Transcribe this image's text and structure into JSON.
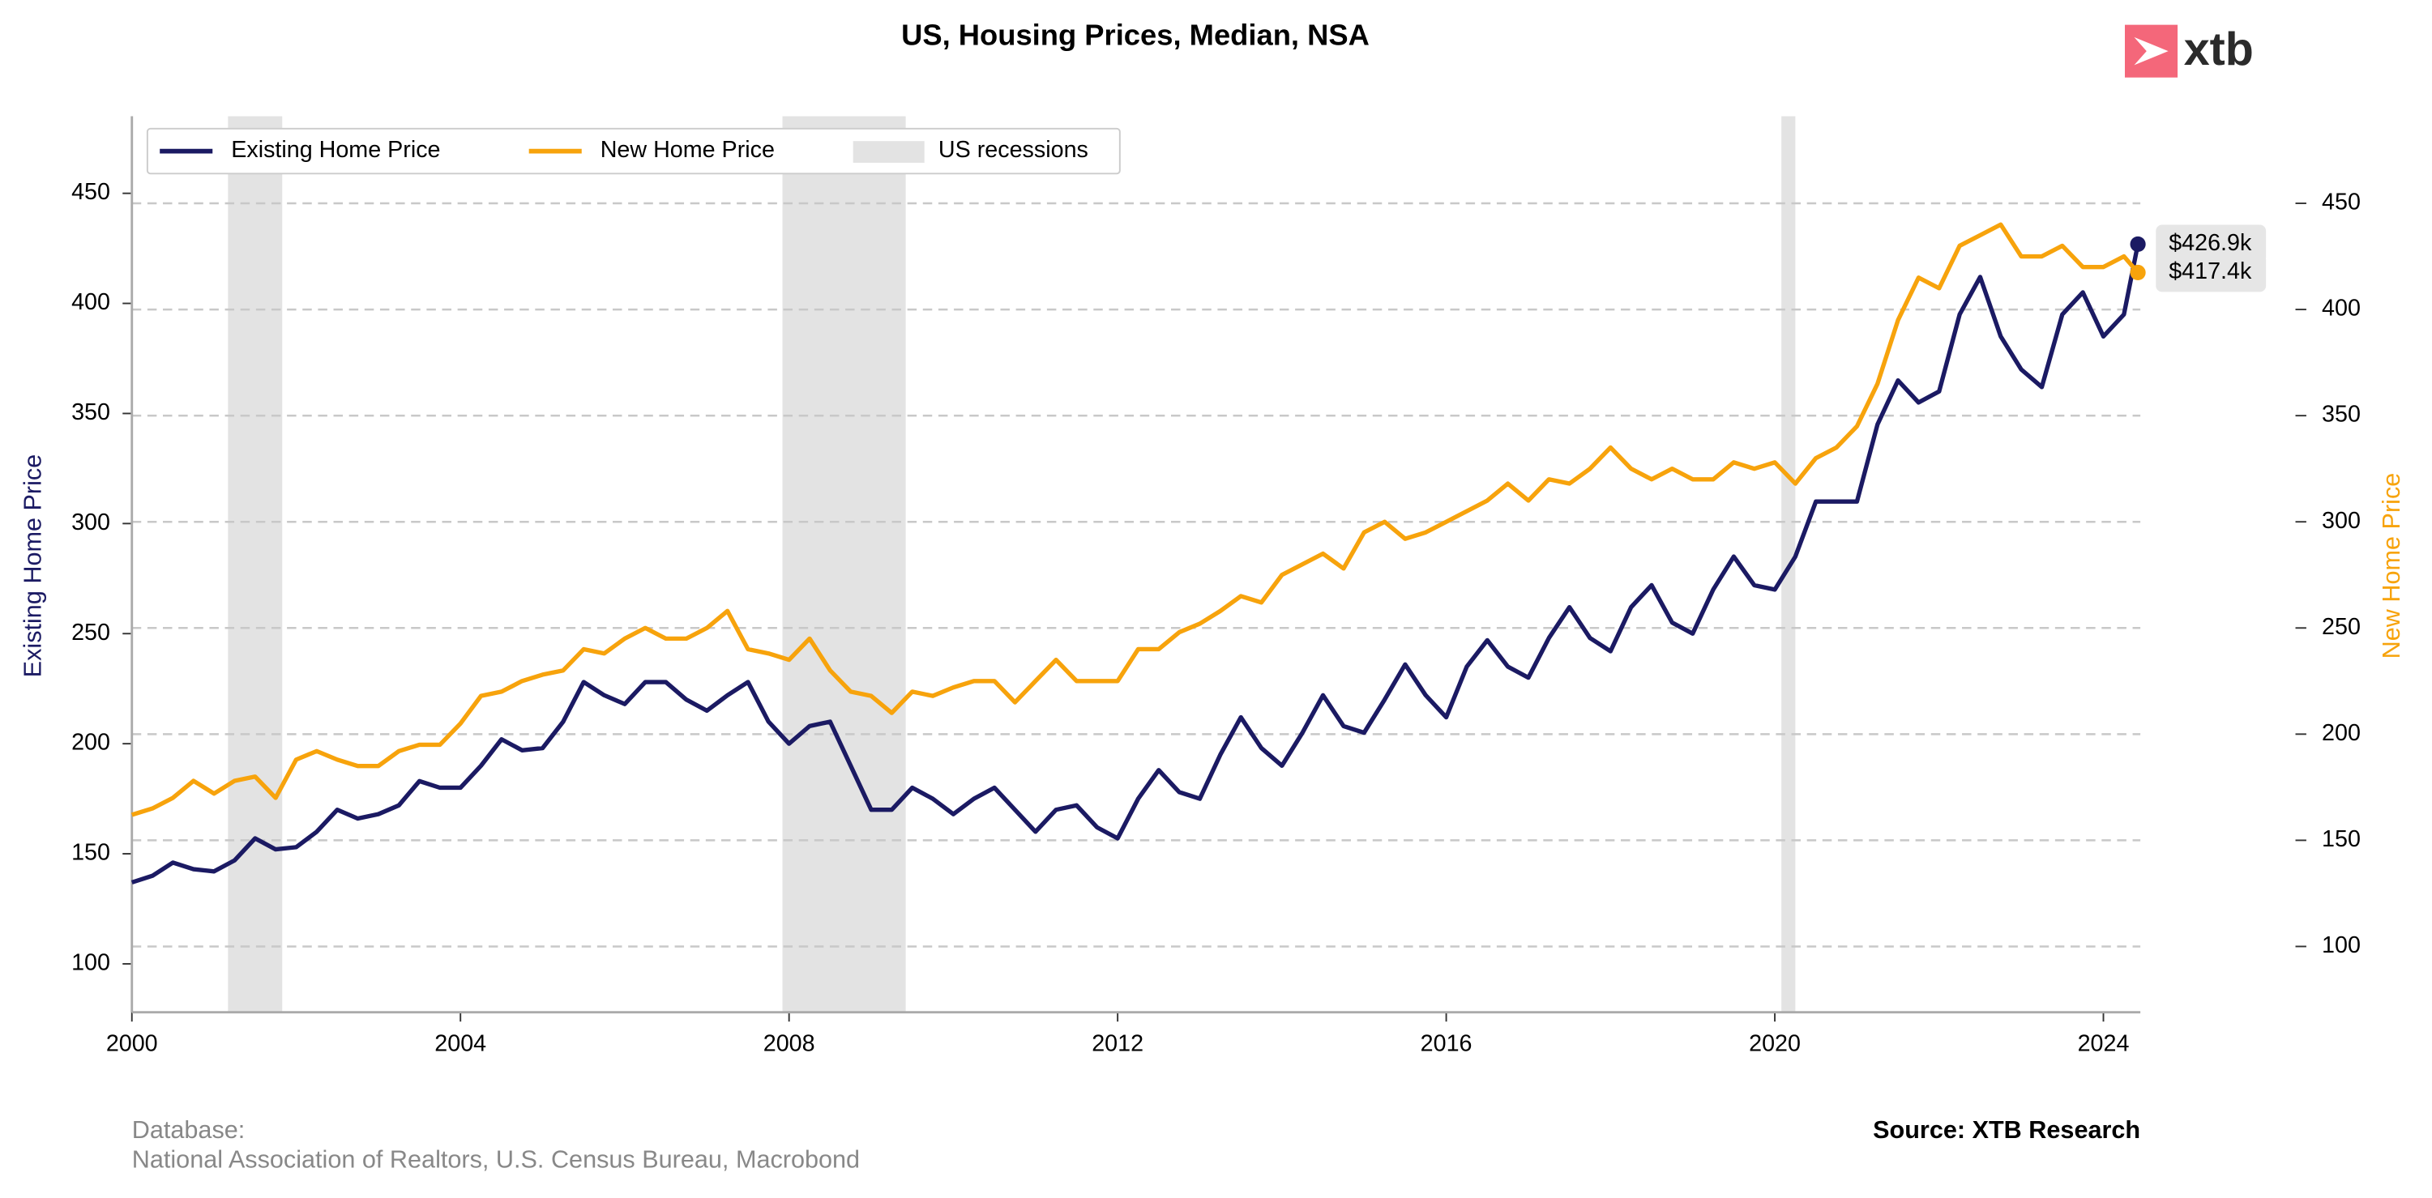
{
  "chart_data": {
    "type": "line",
    "title": "US, Housing Prices, Median, NSA",
    "logo": "xtb",
    "ylabel": "Existing Home Price",
    "y2label": "New Home Price",
    "source": "Source: XTB Research",
    "database": [
      "Database:",
      "National Association of Realtors, U.S. Census Bureau, Macrobond"
    ],
    "xlim": [
      2000,
      2024.45
    ],
    "xticks": [
      2000,
      2004,
      2008,
      2012,
      2016,
      2020,
      2024
    ],
    "ylim": [
      78,
      485
    ],
    "yticks": [
      100,
      150,
      200,
      250,
      300,
      350,
      400,
      450
    ],
    "y2lim": [
      69,
      491
    ],
    "y2ticks": [
      100,
      150,
      200,
      250,
      300,
      350,
      400,
      450
    ],
    "grid": true,
    "legend": "upper left",
    "recessions": {
      "name": "US recessions",
      "color": "#e3e3e3",
      "spans": [
        [
          2001.17,
          2001.83
        ],
        [
          2007.92,
          2009.42
        ],
        [
          2020.08,
          2020.25
        ]
      ]
    },
    "x": [
      2000,
      2000.25,
      2000.5,
      2000.75,
      2001,
      2001.25,
      2001.5,
      2001.75,
      2002,
      2002.25,
      2002.5,
      2002.75,
      2003,
      2003.25,
      2003.5,
      2003.75,
      2004,
      2004.25,
      2004.5,
      2004.75,
      2005,
      2005.25,
      2005.5,
      2005.75,
      2006,
      2006.25,
      2006.5,
      2006.75,
      2007,
      2007.25,
      2007.5,
      2007.75,
      2008,
      2008.25,
      2008.5,
      2008.75,
      2009,
      2009.25,
      2009.5,
      2009.75,
      2010,
      2010.25,
      2010.5,
      2010.75,
      2011,
      2011.25,
      2011.5,
      2011.75,
      2012,
      2012.25,
      2012.5,
      2012.75,
      2013,
      2013.25,
      2013.5,
      2013.75,
      2014,
      2014.25,
      2014.5,
      2014.75,
      2015,
      2015.25,
      2015.5,
      2015.75,
      2016,
      2016.25,
      2016.5,
      2016.75,
      2017,
      2017.25,
      2017.5,
      2017.75,
      2018,
      2018.25,
      2018.5,
      2018.75,
      2019,
      2019.25,
      2019.5,
      2019.75,
      2020,
      2020.25,
      2020.5,
      2020.75,
      2021,
      2021.25,
      2021.5,
      2021.75,
      2022,
      2022.25,
      2022.5,
      2022.75,
      2023,
      2023.25,
      2023.5,
      2023.75,
      2024,
      2024.25,
      2024.42
    ],
    "series": [
      {
        "name": "Existing Home Price",
        "color": "#1b1a63",
        "axis": "y",
        "last_label": "$426.9k",
        "values": [
          137,
          140,
          146,
          143,
          142,
          147,
          157,
          152,
          153,
          160,
          170,
          166,
          168,
          172,
          183,
          180,
          180,
          190,
          202,
          197,
          198,
          210,
          228,
          222,
          218,
          228,
          228,
          220,
          215,
          222,
          228,
          210,
          200,
          208,
          210,
          190,
          170,
          170,
          180,
          175,
          168,
          175,
          180,
          170,
          160,
          170,
          172,
          162,
          157,
          175,
          188,
          178,
          175,
          195,
          212,
          198,
          190,
          205,
          222,
          208,
          205,
          220,
          236,
          222,
          212,
          235,
          247,
          235,
          230,
          248,
          262,
          248,
          242,
          262,
          272,
          255,
          250,
          270,
          285,
          272,
          270,
          285,
          310,
          310,
          310,
          345,
          365,
          355,
          360,
          395,
          412,
          385,
          370,
          362,
          395,
          405,
          385,
          395,
          426.9
        ]
      },
      {
        "name": "New Home Price",
        "color": "#f7a30c",
        "axis": "y2",
        "last_label": "$417.4k",
        "values": [
          162,
          165,
          170,
          178,
          172,
          178,
          180,
          170,
          188,
          192,
          188,
          185,
          185,
          192,
          195,
          195,
          205,
          218,
          220,
          225,
          228,
          230,
          240,
          238,
          245,
          250,
          245,
          245,
          250,
          258,
          240,
          238,
          235,
          245,
          230,
          220,
          218,
          210,
          220,
          218,
          222,
          225,
          225,
          215,
          225,
          235,
          225,
          225,
          225,
          240,
          240,
          248,
          252,
          258,
          265,
          262,
          275,
          280,
          285,
          278,
          295,
          300,
          292,
          295,
          300,
          305,
          310,
          318,
          310,
          320,
          318,
          325,
          335,
          325,
          320,
          325,
          320,
          320,
          328,
          325,
          328,
          318,
          330,
          335,
          345,
          365,
          395,
          415,
          410,
          430,
          435,
          440,
          425,
          425,
          430,
          420,
          420,
          425,
          417.4
        ]
      }
    ]
  }
}
